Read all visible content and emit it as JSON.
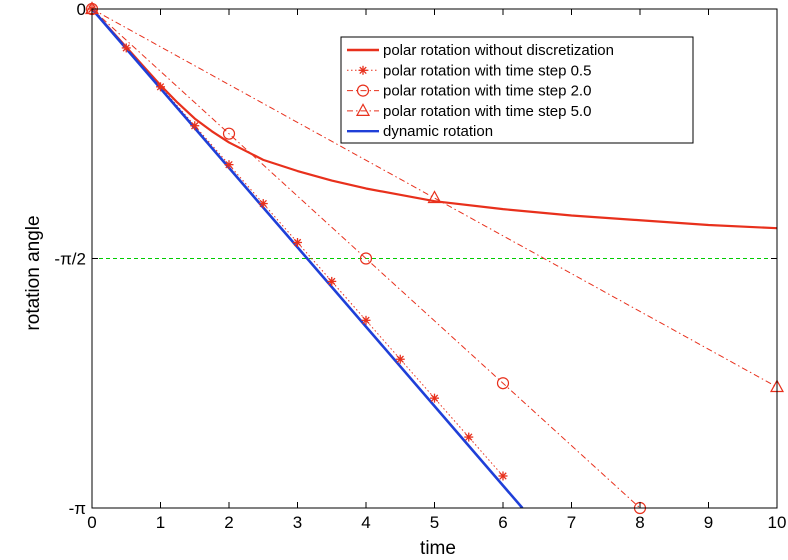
{
  "chart_data": {
    "type": "line",
    "xlabel": "time",
    "ylabel": "rotation angle",
    "xlim": [
      0,
      10
    ],
    "ylim": [
      -3.14159,
      0
    ],
    "x_ticks": [
      0,
      1,
      2,
      3,
      4,
      5,
      6,
      7,
      8,
      9,
      10
    ],
    "x_tick_labels": [
      "0",
      "1",
      "2",
      "3",
      "4",
      "5",
      "6",
      "7",
      "8",
      "9",
      "10"
    ],
    "y_ticks": [
      0,
      -1.5708,
      -3.14159
    ],
    "y_tick_labels": [
      "0",
      "-π/2",
      "-π"
    ],
    "grid": false,
    "legend_position": "top-right",
    "reference_line": {
      "y": -1.5708,
      "color": "#00cc00",
      "style": "dashed"
    },
    "series": [
      {
        "name": "polar rotation without discretization",
        "color": "#e8301c",
        "line": "solid",
        "marker": "none",
        "x": [
          0,
          0.25,
          0.5,
          0.75,
          1,
          1.25,
          1.5,
          1.75,
          2,
          2.5,
          3,
          3.5,
          4,
          4.5,
          5,
          6,
          7,
          8,
          9,
          10
        ],
        "y": [
          0,
          -0.12,
          -0.24,
          -0.36,
          -0.48,
          -0.59,
          -0.69,
          -0.77,
          -0.84,
          -0.95,
          -1.02,
          -1.08,
          -1.13,
          -1.17,
          -1.21,
          -1.26,
          -1.3,
          -1.33,
          -1.36,
          -1.38
        ]
      },
      {
        "name": "polar rotation with time step 0.5",
        "color": "#e8301c",
        "line": "dotted",
        "marker": "asterisk",
        "x": [
          0,
          0.5,
          1,
          1.5,
          2,
          2.5,
          3,
          3.5,
          4,
          4.5,
          5,
          5.5,
          6
        ],
        "y": [
          0,
          -0.245,
          -0.49,
          -0.735,
          -0.98,
          -1.225,
          -1.47,
          -1.715,
          -1.96,
          -2.205,
          -2.45,
          -2.695,
          -2.94
        ]
      },
      {
        "name": "polar rotation with time step 2.0",
        "color": "#e8301c",
        "line": "dashdot",
        "marker": "circle",
        "x": [
          0,
          2,
          4,
          6,
          8
        ],
        "y": [
          0,
          -0.785,
          -1.5708,
          -2.356,
          -3.1416
        ]
      },
      {
        "name": "polar rotation with time step 5.0",
        "color": "#e8301c",
        "line": "dashdot",
        "marker": "triangle",
        "x": [
          0,
          5,
          10
        ],
        "y": [
          0,
          -1.19,
          -2.38
        ]
      },
      {
        "name": "dynamic rotation",
        "color": "#1f3fd8",
        "line": "solid",
        "marker": "none",
        "x": [
          0,
          6.283
        ],
        "y": [
          0,
          -3.1416
        ]
      }
    ]
  }
}
